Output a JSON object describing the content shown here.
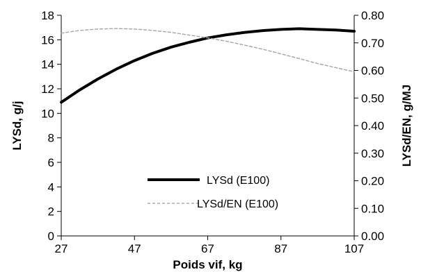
{
  "chart_data": {
    "type": "line",
    "title": "",
    "xlabel": "Poids vif, kg",
    "ylabel": "LYSd, g/j",
    "y2label": "LYSd/EN, g/MJ",
    "xlim": [
      27,
      107
    ],
    "ylim": [
      0,
      18
    ],
    "y2lim": [
      0,
      0.8
    ],
    "x_ticks": [
      "27",
      "47",
      "67",
      "87",
      "107"
    ],
    "y_ticks": [
      "0",
      "2",
      "4",
      "6",
      "8",
      "10",
      "12",
      "14",
      "16",
      "18"
    ],
    "y2_ticks": [
      "0.00",
      "0.10",
      "0.20",
      "0.30",
      "0.40",
      "0.50",
      "0.60",
      "0.70",
      "0.80"
    ],
    "grid": false,
    "legend_position": "center-left",
    "series": [
      {
        "name": "LYSd (E100)",
        "axis": "left",
        "style": "solid-thick",
        "color": "#000000",
        "x": [
          27,
          32,
          37,
          42,
          47,
          52,
          57,
          62,
          67,
          72,
          77,
          82,
          87,
          92,
          97,
          102,
          107
        ],
        "values": [
          10.9,
          11.9,
          12.8,
          13.6,
          14.3,
          14.9,
          15.4,
          15.8,
          16.15,
          16.4,
          16.6,
          16.75,
          16.85,
          16.9,
          16.85,
          16.8,
          16.7
        ]
      },
      {
        "name": "LYSd/EN (E100)",
        "axis": "right",
        "style": "dashed-thin",
        "color": "#aaaaaa",
        "x": [
          27,
          32,
          37,
          42,
          47,
          52,
          57,
          62,
          67,
          72,
          77,
          82,
          87,
          92,
          97,
          102,
          107
        ],
        "values": [
          0.735,
          0.745,
          0.75,
          0.752,
          0.75,
          0.745,
          0.738,
          0.728,
          0.718,
          0.706,
          0.692,
          0.677,
          0.66,
          0.643,
          0.625,
          0.61,
          0.595
        ]
      }
    ]
  }
}
